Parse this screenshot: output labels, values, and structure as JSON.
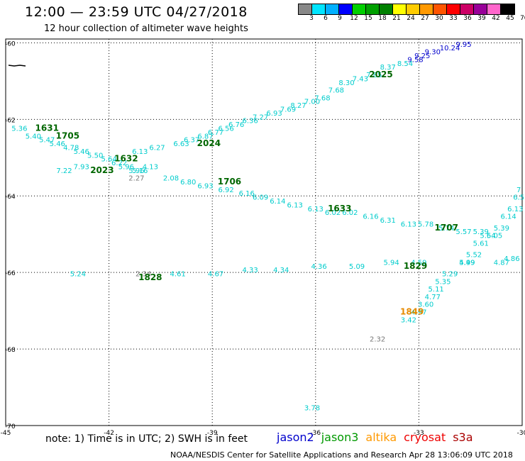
{
  "header": {
    "title": "12:00 — 23:59 UTC 04/27/2018",
    "subtitle": "12 hour collection of altimeter wave heights"
  },
  "color_scale": {
    "labels": [
      "3",
      "6",
      "9",
      "12",
      "15",
      "18",
      "21",
      "24",
      "27",
      "30",
      "33",
      "36",
      "39",
      "42",
      "45",
      "70 (ft)"
    ],
    "colors": [
      "#888888",
      "#00e5ff",
      "#00b0ff",
      "#0000ff",
      "#00d000",
      "#00a000",
      "#008000",
      "#ffff00",
      "#ffcc00",
      "#ff9900",
      "#ff5500",
      "#ff0000",
      "#cc0066",
      "#990099",
      "#ff66cc",
      "#000000"
    ]
  },
  "map": {
    "lon_ticks": [
      "-45",
      "-42",
      "-39",
      "-36",
      "-33",
      "-30"
    ],
    "lat_ticks": [
      "-60",
      "-62",
      "-64",
      "-66",
      "-68",
      "-70"
    ]
  },
  "tracks": [
    {
      "satellite": "jason2",
      "color": "#0000cc",
      "points": [
        {
          "lon": -31.7,
          "lat": -60.1,
          "v": "9.95"
        },
        {
          "lon": -32.1,
          "lat": -60.2,
          "v": "10.24"
        },
        {
          "lon": -32.6,
          "lat": -60.3,
          "v": "9.30"
        },
        {
          "lon": -32.9,
          "lat": -60.4,
          "v": "9.25"
        },
        {
          "lon": -33.1,
          "lat": -60.5,
          "v": "9.58"
        }
      ]
    },
    {
      "satellite": "jason3",
      "color": "#00cccc",
      "points": [
        {
          "lon": -33.4,
          "lat": -60.6,
          "v": "8.54"
        },
        {
          "lon": -33.9,
          "lat": -60.7,
          "v": "8.37"
        },
        {
          "lon": -34.3,
          "lat": -60.9,
          "v": "7.85"
        },
        {
          "lon": -34.7,
          "lat": -61.0,
          "v": "7.43"
        },
        {
          "lon": -35.1,
          "lat": -61.1,
          "v": "8.30"
        },
        {
          "lon": -35.4,
          "lat": -61.3,
          "v": "7.68"
        },
        {
          "lon": -35.8,
          "lat": -61.5,
          "v": "7.68"
        },
        {
          "lon": -36.1,
          "lat": -61.6,
          "v": "7.00"
        },
        {
          "lon": -36.5,
          "lat": -61.7,
          "v": "8.27"
        },
        {
          "lon": -36.8,
          "lat": -61.8,
          "v": "7.69"
        },
        {
          "lon": -37.2,
          "lat": -61.9,
          "v": "6.93"
        },
        {
          "lon": -37.6,
          "lat": -62.0,
          "v": "7.27"
        },
        {
          "lon": -37.9,
          "lat": -62.1,
          "v": "6.36"
        },
        {
          "lon": -38.3,
          "lat": -62.2,
          "v": "6.76"
        },
        {
          "lon": -38.6,
          "lat": -62.3,
          "v": "6.56"
        },
        {
          "lon": -38.9,
          "lat": -62.4,
          "v": "6.77"
        },
        {
          "lon": -39.2,
          "lat": -62.5,
          "v": "6.87"
        },
        {
          "lon": -39.6,
          "lat": -62.6,
          "v": "6.37"
        },
        {
          "lon": -39.9,
          "lat": -62.7,
          "v": "6.63"
        },
        {
          "lon": -40.6,
          "lat": -62.8,
          "v": "6.27"
        },
        {
          "lon": -41.1,
          "lat": -62.9,
          "v": "6.13"
        }
      ]
    },
    {
      "satellite": "jason3",
      "color": "#00cccc",
      "points": [
        {
          "lon": -44.6,
          "lat": -62.3,
          "v": "5.36"
        },
        {
          "lon": -44.2,
          "lat": -62.5,
          "v": "5.40"
        },
        {
          "lon": -43.8,
          "lat": -62.6,
          "v": "5.47"
        },
        {
          "lon": -43.5,
          "lat": -62.7,
          "v": "5.46"
        },
        {
          "lon": -43.1,
          "lat": -62.8,
          "v": "4.78"
        },
        {
          "lon": -42.8,
          "lat": -62.9,
          "v": "5.46"
        },
        {
          "lon": -42.4,
          "lat": -63.0,
          "v": "5.50"
        },
        {
          "lon": -42.0,
          "lat": -63.1,
          "v": "5.64"
        },
        {
          "lon": -41.7,
          "lat": -63.2,
          "v": "6.22"
        },
        {
          "lon": -43.3,
          "lat": -63.4,
          "v": "7.22"
        },
        {
          "lon": -42.8,
          "lat": -63.3,
          "v": "7.93"
        },
        {
          "lon": -41.5,
          "lat": -63.3,
          "v": "5.96"
        },
        {
          "lon": -41.2,
          "lat": -63.4,
          "v": "5.96"
        },
        {
          "lon": -40.8,
          "lat": -63.3,
          "v": "4.13"
        },
        {
          "lon": -41.1,
          "lat": -63.4,
          "v": "5.16"
        }
      ]
    },
    {
      "satellite": "jason3",
      "color": "#00cccc",
      "points": [
        {
          "lon": -40.2,
          "lat": -63.6,
          "v": "2.08"
        },
        {
          "lon": -39.7,
          "lat": -63.7,
          "v": "6.80"
        },
        {
          "lon": -39.2,
          "lat": -63.8,
          "v": "6.93"
        },
        {
          "lon": -38.6,
          "lat": -63.9,
          "v": "6.92"
        },
        {
          "lon": -38.0,
          "lat": -64.0,
          "v": "6.16"
        },
        {
          "lon": -37.6,
          "lat": -64.1,
          "v": "6.09"
        },
        {
          "lon": -37.1,
          "lat": -64.2,
          "v": "6.14"
        },
        {
          "lon": -36.6,
          "lat": -64.3,
          "v": "6.13"
        },
        {
          "lon": -36.0,
          "lat": -64.4,
          "v": "6.13"
        },
        {
          "lon": -35.5,
          "lat": -64.5,
          "v": "6.02"
        },
        {
          "lon": -35.0,
          "lat": -64.5,
          "v": "6.02"
        },
        {
          "lon": -34.4,
          "lat": -64.6,
          "v": "6.16"
        },
        {
          "lon": -33.9,
          "lat": -64.7,
          "v": "6.31"
        },
        {
          "lon": -33.3,
          "lat": -64.8,
          "v": "6.13"
        },
        {
          "lon": -32.8,
          "lat": -64.8,
          "v": "5.78"
        },
        {
          "lon": -32.2,
          "lat": -64.9,
          "v": "5.74"
        },
        {
          "lon": -31.7,
          "lat": -65.0,
          "v": "5.57"
        },
        {
          "lon": -31.2,
          "lat": -65.0,
          "v": "5.39"
        },
        {
          "lon": -30.8,
          "lat": -65.1,
          "v": "5.05"
        }
      ]
    },
    {
      "satellite": "jason3",
      "color": "#00cccc",
      "points": [
        {
          "lon": -30.1,
          "lat": -63.9,
          "v": "7"
        },
        {
          "lon": -30.1,
          "lat": -64.1,
          "v": "6.5"
        },
        {
          "lon": -30.2,
          "lat": -64.4,
          "v": "6.13"
        },
        {
          "lon": -30.4,
          "lat": -64.6,
          "v": "6.14"
        },
        {
          "lon": -30.6,
          "lat": -64.9,
          "v": "5.39"
        },
        {
          "lon": -31.0,
          "lat": -65.1,
          "v": "5.64"
        },
        {
          "lon": -31.2,
          "lat": -65.3,
          "v": "5.61"
        },
        {
          "lon": -31.4,
          "lat": -65.6,
          "v": "5.52"
        },
        {
          "lon": -31.6,
          "lat": -65.8,
          "v": "5.49"
        },
        {
          "lon": -32.1,
          "lat": -66.1,
          "v": "5.29"
        },
        {
          "lon": -32.3,
          "lat": -66.3,
          "v": "5.35"
        },
        {
          "lon": -32.5,
          "lat": -66.5,
          "v": "5.11"
        },
        {
          "lon": -32.6,
          "lat": -66.7,
          "v": "4.77"
        },
        {
          "lon": -32.8,
          "lat": -66.9,
          "v": "3.60"
        },
        {
          "lon": -33.0,
          "lat": -67.1,
          "v": "4.97"
        },
        {
          "lon": -33.3,
          "lat": -67.3,
          "v": "3.42"
        }
      ]
    },
    {
      "satellite": "jason3",
      "color": "#00cccc",
      "points": [
        {
          "lon": -42.9,
          "lat": -66.1,
          "v": "5.24"
        },
        {
          "lon": -40.0,
          "lat": -66.1,
          "v": "4.61"
        },
        {
          "lon": -38.9,
          "lat": -66.1,
          "v": "4.67"
        },
        {
          "lon": -37.9,
          "lat": -66.0,
          "v": "4.33"
        },
        {
          "lon": -37.0,
          "lat": -66.0,
          "v": "4.34"
        },
        {
          "lon": -35.9,
          "lat": -65.9,
          "v": "4.36"
        },
        {
          "lon": -34.8,
          "lat": -65.9,
          "v": "5.09"
        },
        {
          "lon": -33.8,
          "lat": -65.8,
          "v": "5.94"
        },
        {
          "lon": -33.0,
          "lat": -65.8,
          "v": "4.59"
        },
        {
          "lon": -31.6,
          "lat": -65.8,
          "v": "4.99"
        },
        {
          "lon": -30.6,
          "lat": -65.8,
          "v": "4.87"
        },
        {
          "lon": -30.3,
          "lat": -65.7,
          "v": "4.86"
        },
        {
          "lon": -36.1,
          "lat": -69.6,
          "v": "3.78"
        }
      ]
    },
    {
      "satellite": "grey",
      "color": "#777777",
      "points": [
        {
          "lon": -41.2,
          "lat": -63.6,
          "v": "2.27"
        },
        {
          "lon": -41.0,
          "lat": -66.1,
          "v": "2.34"
        },
        {
          "lon": -34.2,
          "lat": -67.8,
          "v": "2.32"
        }
      ]
    }
  ],
  "pass_labels": [
    {
      "lon": -43.8,
      "lat": -62.3,
      "t": "1631",
      "color": "#006600"
    },
    {
      "lon": -43.2,
      "lat": -62.5,
      "t": "1705",
      "color": "#006600"
    },
    {
      "lon": -41.5,
      "lat": -63.1,
      "t": "1632",
      "color": "#006600"
    },
    {
      "lon": -42.2,
      "lat": -63.4,
      "t": "2023",
      "color": "#006600"
    },
    {
      "lon": -39.1,
      "lat": -62.7,
      "t": "2024",
      "color": "#006600"
    },
    {
      "lon": -34.1,
      "lat": -60.9,
      "t": "2025",
      "color": "#006600"
    },
    {
      "lon": -38.5,
      "lat": -63.7,
      "t": "1706",
      "color": "#006600"
    },
    {
      "lon": -35.3,
      "lat": -64.4,
      "t": "1633",
      "color": "#006600"
    },
    {
      "lon": -32.2,
      "lat": -64.9,
      "t": "1707",
      "color": "#006600"
    },
    {
      "lon": -40.8,
      "lat": -66.2,
      "t": "1828",
      "color": "#006600"
    },
    {
      "lon": -33.1,
      "lat": -65.9,
      "t": "1829",
      "color": "#006600"
    },
    {
      "lon": -33.2,
      "lat": -67.1,
      "t": "1849",
      "color": "#e68a00"
    }
  ],
  "footer": {
    "note": "note: 1) Time is in UTC; 2) SWH is in feet",
    "legend": [
      {
        "name": "jason2",
        "color": "#0000cc"
      },
      {
        "name": "jason3",
        "color": "#009900"
      },
      {
        "name": "altika",
        "color": "#ff9900"
      },
      {
        "name": "cryosat",
        "color": "#ee0000"
      },
      {
        "name": "s3a",
        "color": "#aa0000"
      }
    ],
    "credit": "NOAA/NESDIS Center for Satellite Applications and Research    Apr 28 13:06:09 UTC 2018"
  }
}
